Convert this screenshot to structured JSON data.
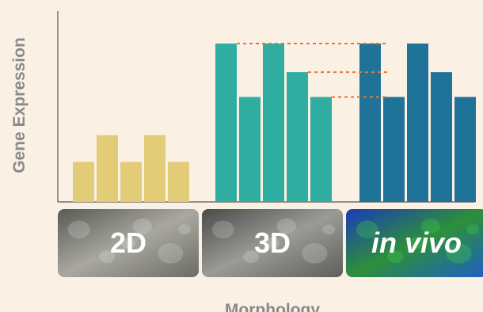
{
  "chart_data": {
    "type": "bar",
    "xlabel": "Morphology",
    "ylabel": "Gene Expression",
    "ylim": [
      0,
      100
    ],
    "grid": false,
    "legend": "none",
    "groups": [
      {
        "name": "2D",
        "italic": false,
        "color": "#e3cc78",
        "values": [
          21,
          35,
          21,
          35,
          21
        ],
        "panel_colors": [
          "#5a5a56",
          "#a8a8a0",
          "#6c6c66"
        ]
      },
      {
        "name": "3D",
        "italic": false,
        "color": "#2fada0",
        "values": [
          83,
          55,
          83,
          68,
          55
        ],
        "panel_colors": [
          "#4a4a4a",
          "#9a9a96",
          "#5e5e5c"
        ]
      },
      {
        "name": "in vivo",
        "italic": true,
        "color": "#1f7399",
        "values": [
          83,
          55,
          83,
          68,
          55
        ],
        "panel_colors": [
          "#1a3cb8",
          "#2d8f3a",
          "#1f5fc8"
        ]
      }
    ],
    "reference_lines": [
      {
        "value": 83,
        "color": "#e8772e"
      },
      {
        "value": 68,
        "color": "#e8772e"
      },
      {
        "value": 55,
        "color": "#e8772e"
      }
    ]
  }
}
